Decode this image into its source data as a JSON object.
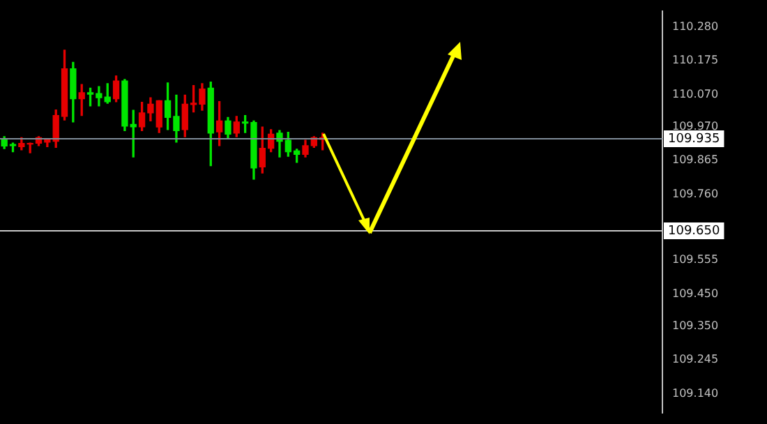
{
  "chart_data": {
    "type": "candlestick",
    "categories": [
      null,
      null,
      null,
      null,
      null,
      null,
      null,
      null,
      null,
      null,
      null,
      null,
      null,
      null,
      null,
      null,
      null,
      null,
      null,
      null,
      null,
      null,
      null,
      null,
      null,
      null,
      null,
      null,
      null,
      null,
      null,
      null,
      null,
      null,
      null,
      null,
      null,
      null,
      null,
      null,
      null,
      null,
      null,
      null,
      null,
      null,
      null,
      null,
      null,
      null,
      null,
      null,
      null,
      null,
      null,
      null,
      null,
      null,
      null,
      null,
      null,
      null,
      null,
      null,
      null,
      null,
      null,
      null,
      null,
      null,
      null,
      null,
      null,
      null,
      null,
      null,
      null
    ],
    "ohlc": [
      [
        109.91,
        109.939,
        109.902,
        109.929
      ],
      [
        109.911,
        109.919,
        109.892,
        109.915
      ],
      [
        109.918,
        109.936,
        109.898,
        109.908
      ],
      [
        109.918,
        109.919,
        109.889,
        109.916
      ],
      [
        109.936,
        109.939,
        109.911,
        109.919
      ],
      [
        109.929,
        109.931,
        109.908,
        109.922
      ],
      [
        110.005,
        110.022,
        109.906,
        109.925
      ],
      [
        110.15,
        110.208,
        109.991,
        110.002
      ],
      [
        110.057,
        110.17,
        109.985,
        110.15
      ],
      [
        110.076,
        110.101,
        110.005,
        110.057
      ],
      [
        110.071,
        110.09,
        110.035,
        110.076
      ],
      [
        110.06,
        110.095,
        110.035,
        110.073
      ],
      [
        110.048,
        110.104,
        110.043,
        110.062
      ],
      [
        110.112,
        110.128,
        110.048,
        110.057
      ],
      [
        109.972,
        110.117,
        109.958,
        110.112
      ],
      [
        109.97,
        110.021,
        109.876,
        109.977
      ],
      [
        110.013,
        110.046,
        109.958,
        109.97
      ],
      [
        110.04,
        110.06,
        109.988,
        110.013
      ],
      [
        110.051,
        110.051,
        109.952,
        109.969
      ],
      [
        109.999,
        110.106,
        109.961,
        110.051
      ],
      [
        109.958,
        110.068,
        109.922,
        110.002
      ],
      [
        110.04,
        110.068,
        109.939,
        109.961
      ],
      [
        110.043,
        110.098,
        110.016,
        110.039
      ],
      [
        110.087,
        110.104,
        110.021,
        110.04
      ],
      [
        109.95,
        110.109,
        109.849,
        110.09
      ],
      [
        109.988,
        110.048,
        109.911,
        109.954
      ],
      [
        109.947,
        109.999,
        109.936,
        109.988
      ],
      [
        109.985,
        110.002,
        109.939,
        109.95
      ],
      [
        109.981,
        110.005,
        109.952,
        109.985
      ],
      [
        109.842,
        109.988,
        109.807,
        109.983
      ],
      [
        109.903,
        109.969,
        109.826,
        109.845
      ],
      [
        109.947,
        109.961,
        109.892,
        109.903
      ],
      [
        109.925,
        109.958,
        109.876,
        109.95
      ],
      [
        109.892,
        109.953,
        109.878,
        109.928
      ],
      [
        109.884,
        109.9,
        109.859,
        109.895
      ],
      [
        109.911,
        109.928,
        109.876,
        109.884
      ],
      [
        109.936,
        109.939,
        109.906,
        109.911
      ],
      [
        109.936,
        109.95,
        109.898,
        109.931
      ],
      null,
      null,
      null,
      null,
      null,
      null,
      null,
      null,
      null,
      null,
      null,
      null,
      null,
      null,
      null,
      null,
      null,
      null,
      null,
      null,
      null,
      null,
      null,
      null,
      null,
      null,
      null,
      null,
      null,
      null,
      null,
      null,
      null,
      null,
      null,
      null,
      null,
      null,
      null
    ],
    "ylim": [
      109.08,
      110.33
    ],
    "yticks": [
      {
        "value": 110.28,
        "label": "110.280"
      },
      110.175,
      {
        "value": 110.07,
        "label": "110.070"
      },
      {
        "value": 109.97,
        "label": "109.970"
      },
      109.865,
      {
        "value": 109.76,
        "label": "109.760"
      },
      109.555,
      {
        "value": 109.45,
        "label": "109.450"
      },
      {
        "value": 109.35,
        "label": "109.350"
      },
      109.245,
      {
        "value": 109.14,
        "label": "109.140"
      }
    ],
    "ref_lines": [
      {
        "axis": "y",
        "value": 109.935,
        "label": "109.935",
        "color": "#7f8c99"
      },
      {
        "axis": "y",
        "value": 109.65,
        "label": "109.650",
        "color": "#c8c8c8"
      }
    ],
    "tick_labels": "y",
    "grid": false,
    "legend": false
  }
}
